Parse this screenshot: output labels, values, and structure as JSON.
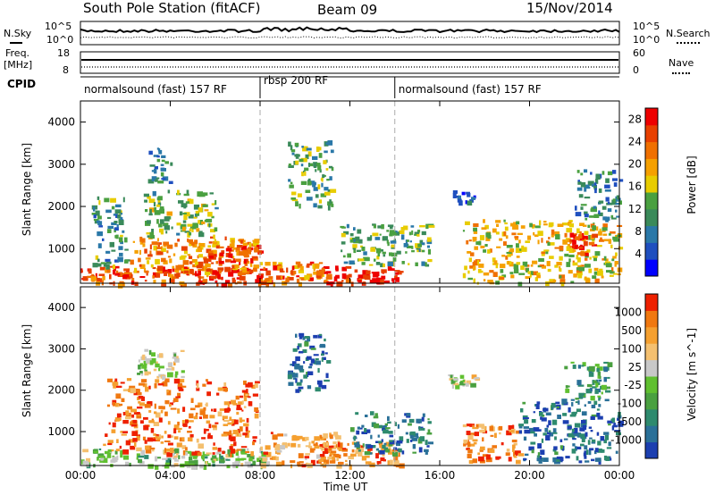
{
  "header": {
    "station": "South Pole Station (fitACF)",
    "beam": "Beam 09",
    "date": "15/Nov/2014"
  },
  "noise_panel": {
    "left_label": "N.Sky",
    "right_label": "N.Search",
    "left_ticks": [
      "10^5",
      "10^0"
    ],
    "right_ticks": [
      "10^5",
      "10^0"
    ]
  },
  "freq_panel": {
    "left_label_1": "Freq.",
    "left_label_2": "[MHz]",
    "right_label": "Nave",
    "left_ticks": [
      "18",
      "8"
    ],
    "right_ticks": [
      "60",
      "0"
    ]
  },
  "cpid": {
    "label": "CPID",
    "segments": [
      {
        "name": "normalsound (fast) 157 RF",
        "start_hour": 0,
        "end_hour": 8
      },
      {
        "name": "rbsp 200 RF",
        "start_hour": 8,
        "end_hour": 14
      },
      {
        "name": "normalsound (fast) 157 RF",
        "start_hour": 14,
        "end_hour": 24
      }
    ]
  },
  "chart_data": [
    {
      "type": "heatmap",
      "name": "Power",
      "ylabel": "Slant Range [km]",
      "xlabel": "Time UT",
      "xlim": [
        0,
        24
      ],
      "ylim": [
        180,
        4500
      ],
      "x_ticks": [
        "00:00",
        "04:00",
        "08:00",
        "12:00",
        "16:00",
        "20:00",
        "00:00"
      ],
      "y_ticks": [
        1000,
        2000,
        3000,
        4000
      ],
      "colorbar": {
        "label": "Power [dB]",
        "ticks": [
          4,
          8,
          12,
          16,
          20,
          24,
          28
        ],
        "range": [
          0,
          30
        ],
        "colors": [
          "#0000ff",
          "#1f4fbf",
          "#2a78a8",
          "#3a8a5a",
          "#4aa040",
          "#e8cc00",
          "#f5a000",
          "#f07000",
          "#e84000",
          "#ee0000"
        ]
      },
      "regions": [
        {
          "t": [
            0.0,
            8.3
          ],
          "r": [
            180,
            600
          ],
          "level": 0.85
        },
        {
          "t": [
            2.2,
            7.8
          ],
          "r": [
            450,
            1300
          ],
          "level": 0.7
        },
        {
          "t": [
            2.8,
            6.0
          ],
          "r": [
            1300,
            2400
          ],
          "level": 0.45
        },
        {
          "t": [
            3.0,
            4.0
          ],
          "r": [
            2600,
            3400
          ],
          "level": 0.3
        },
        {
          "t": [
            0.5,
            2.0
          ],
          "r": [
            600,
            2300
          ],
          "level": 0.35
        },
        {
          "t": [
            5.5,
            8.0
          ],
          "r": [
            700,
            1100
          ],
          "level": 0.9
        },
        {
          "t": [
            8.0,
            11.0
          ],
          "r": [
            200,
            700
          ],
          "level": 0.75
        },
        {
          "t": [
            9.2,
            11.2
          ],
          "r": [
            2000,
            3600
          ],
          "level": 0.4
        },
        {
          "t": [
            10.5,
            14.2
          ],
          "r": [
            200,
            600
          ],
          "level": 0.95
        },
        {
          "t": [
            11.5,
            15.5
          ],
          "r": [
            600,
            1600
          ],
          "level": 0.4
        },
        {
          "t": [
            16.5,
            17.5
          ],
          "r": [
            2100,
            2400
          ],
          "level": 0.15
        },
        {
          "t": [
            17.0,
            24.0
          ],
          "r": [
            200,
            1700
          ],
          "level": 0.6
        },
        {
          "t": [
            21.5,
            23.0
          ],
          "r": [
            900,
            1400
          ],
          "level": 0.85
        },
        {
          "t": [
            22.0,
            24.0
          ],
          "r": [
            1700,
            2900
          ],
          "level": 0.3
        }
      ]
    },
    {
      "type": "heatmap",
      "name": "Velocity",
      "ylabel": "Slant Range [km]",
      "xlabel": "Time UT",
      "xlim": [
        0,
        24
      ],
      "ylim": [
        180,
        4500
      ],
      "x_ticks": [
        "00:00",
        "04:00",
        "08:00",
        "12:00",
        "16:00",
        "20:00",
        "00:00"
      ],
      "y_ticks": [
        1000,
        2000,
        3000,
        4000
      ],
      "colorbar": {
        "label": "Velocity [m s^-1]",
        "ticks": [
          "1000",
          "500",
          "100",
          "25",
          "-25",
          "-100",
          "-500",
          "-1000"
        ],
        "colors": [
          "#1c3fb0",
          "#2a7098",
          "#2e8a6e",
          "#4aa040",
          "#60c030",
          "#c8c8c8",
          "#f4c070",
          "#f5a030",
          "#f07810",
          "#ee2000"
        ]
      },
      "regions": [
        {
          "t": [
            0.0,
            8.3
          ],
          "r": [
            180,
            600
          ],
          "level": 0.45
        },
        {
          "t": [
            1.0,
            7.8
          ],
          "r": [
            500,
            2300
          ],
          "level": 0.85
        },
        {
          "t": [
            2.5,
            4.5
          ],
          "r": [
            2300,
            3000
          ],
          "level": 0.55
        },
        {
          "t": [
            8.0,
            11.5
          ],
          "r": [
            200,
            1000
          ],
          "level": 0.75
        },
        {
          "t": [
            9.2,
            11.0
          ],
          "r": [
            2000,
            3400
          ],
          "level": 0.15
        },
        {
          "t": [
            10.5,
            14.2
          ],
          "r": [
            200,
            800
          ],
          "level": 0.8
        },
        {
          "t": [
            12.0,
            15.5
          ],
          "r": [
            500,
            1500
          ],
          "level": 0.2
        },
        {
          "t": [
            16.3,
            17.8
          ],
          "r": [
            2100,
            2400
          ],
          "level": 0.55
        },
        {
          "t": [
            17.0,
            19.5
          ],
          "r": [
            300,
            1200
          ],
          "level": 0.8
        },
        {
          "t": [
            19.5,
            24.0
          ],
          "r": [
            300,
            1800
          ],
          "level": 0.15
        },
        {
          "t": [
            21.5,
            23.5
          ],
          "r": [
            1800,
            2700
          ],
          "level": 0.3
        }
      ]
    }
  ]
}
